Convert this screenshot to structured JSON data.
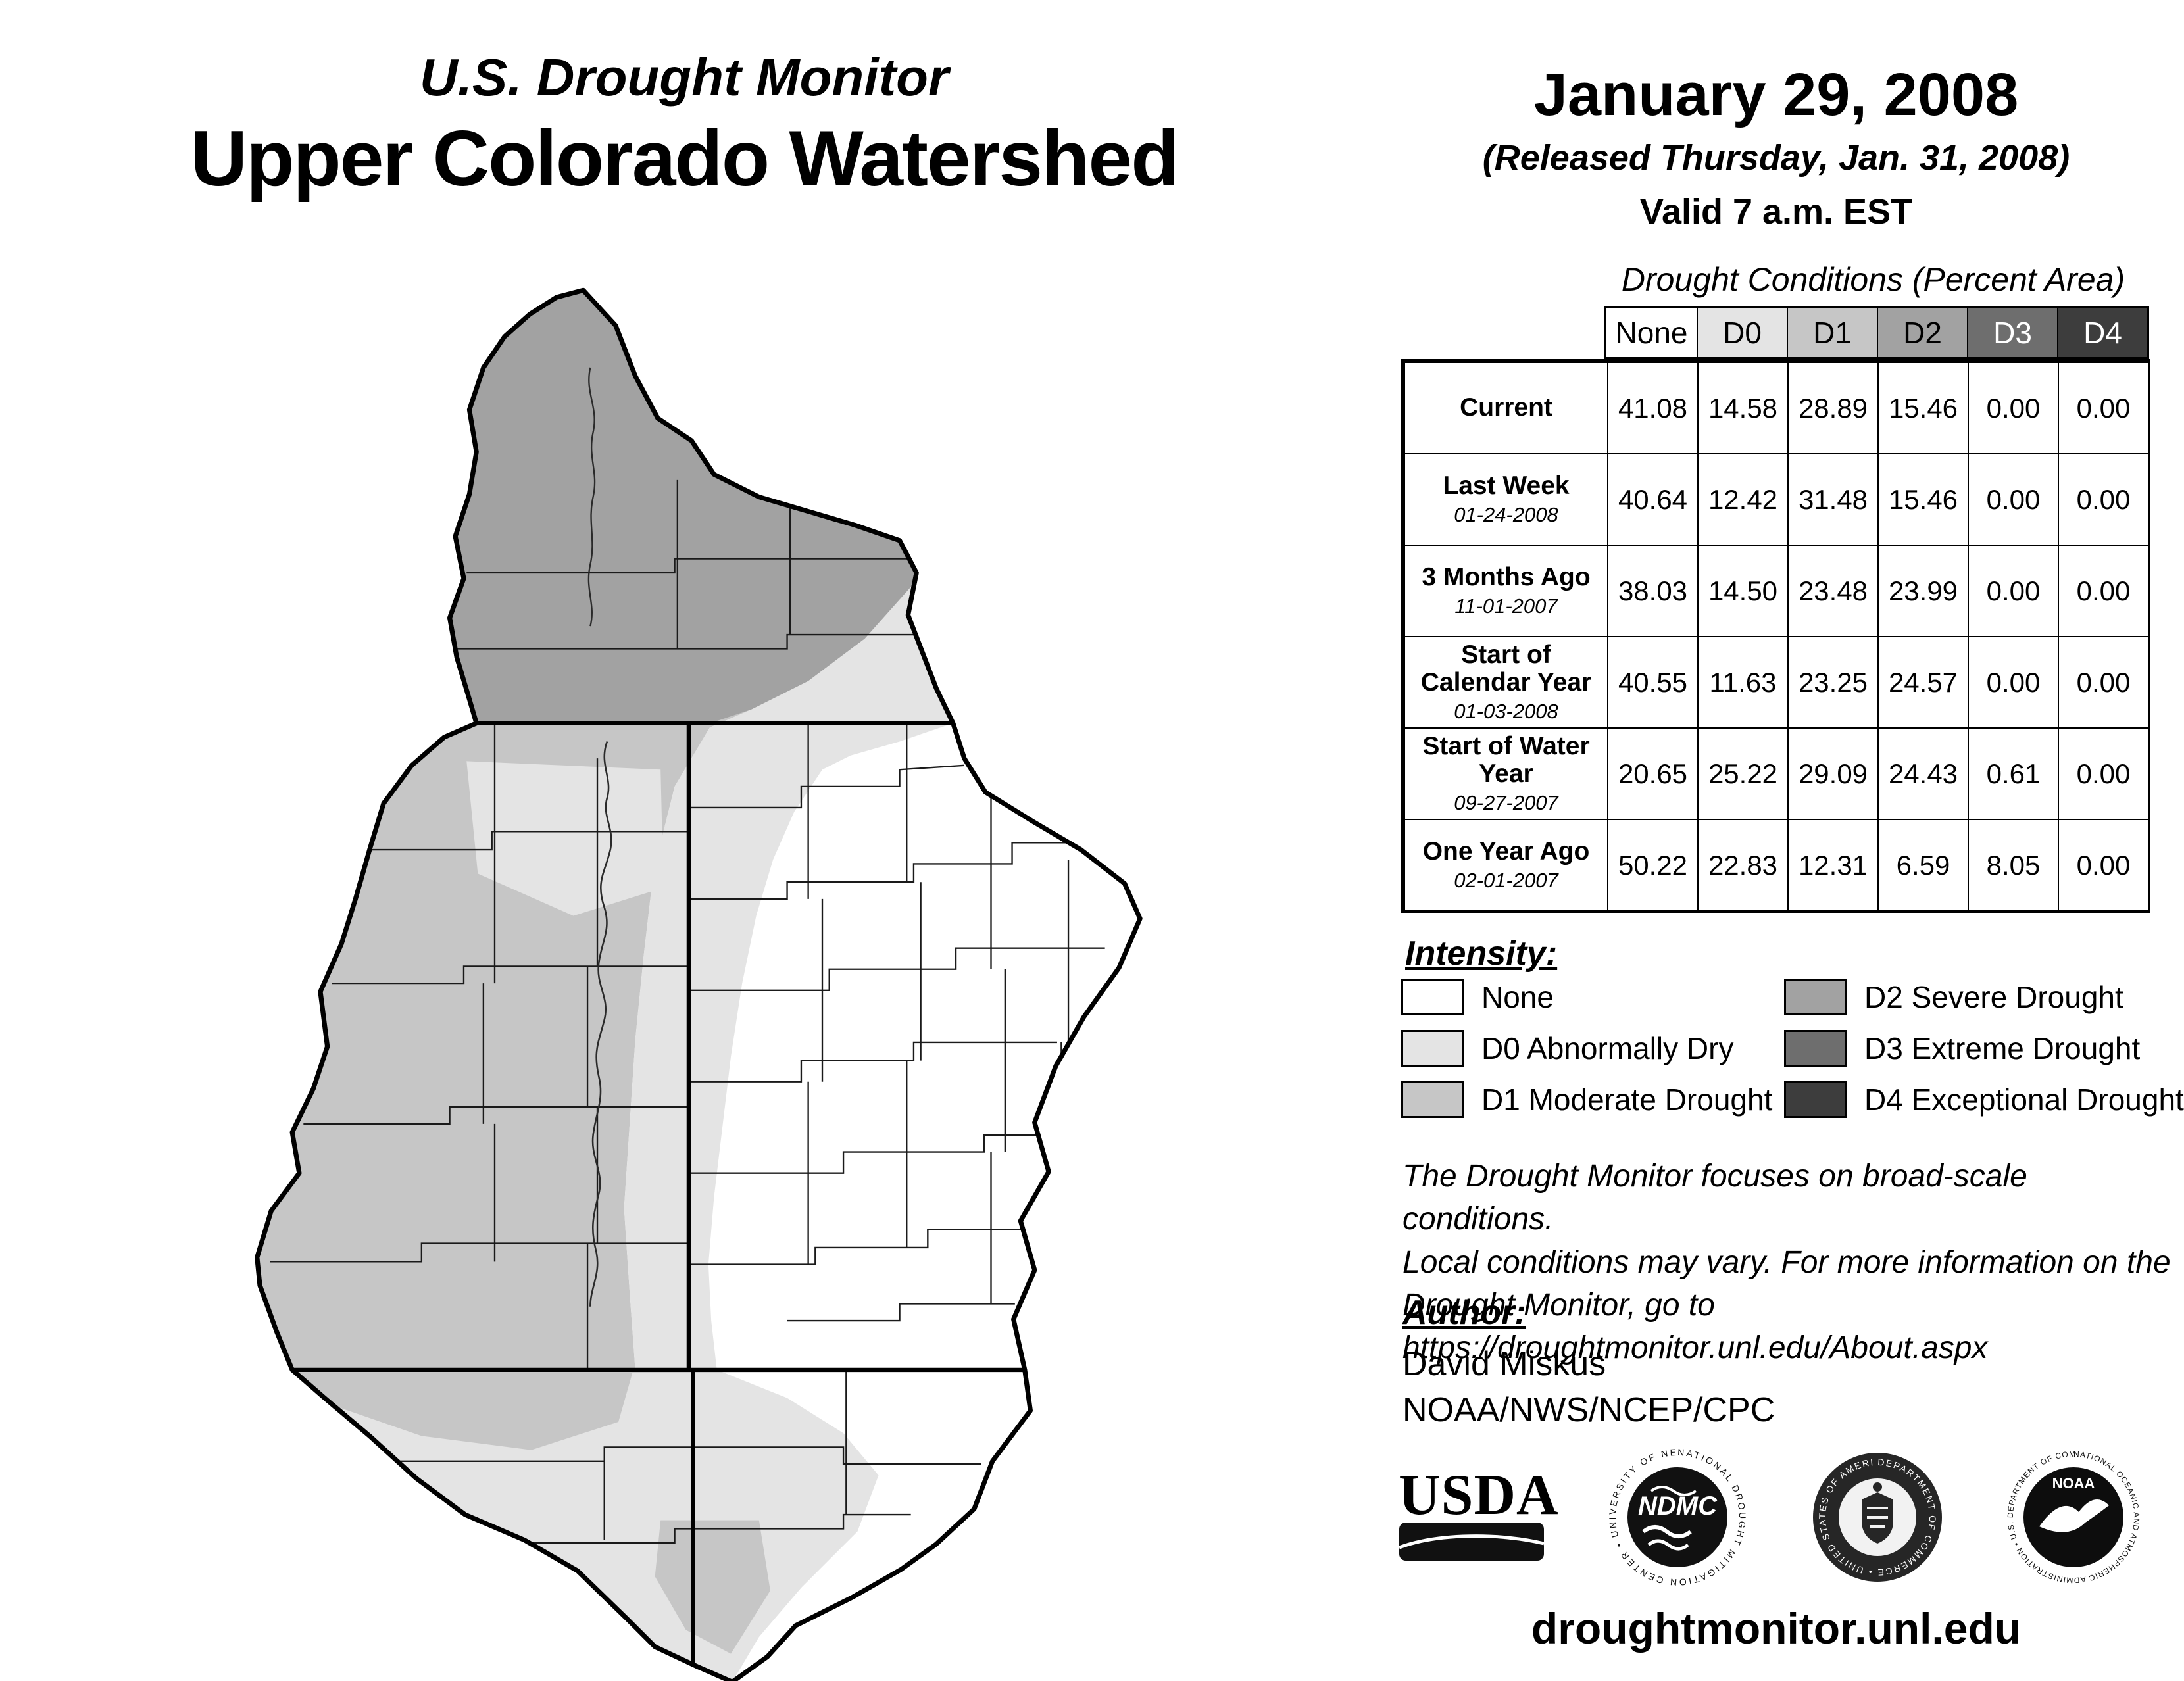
{
  "header": {
    "title_line1": "U.S. Drought Monitor",
    "title_line2": "Upper Colorado Watershed",
    "date": "January 29, 2008",
    "released": "(Released Thursday, Jan. 31, 2008)",
    "valid": "Valid 7 a.m. EST"
  },
  "table": {
    "title": "Drought Conditions (Percent Area)",
    "columns": [
      {
        "label": "None",
        "color": "#ffffff",
        "text_color": "#000000"
      },
      {
        "label": "D0",
        "color": "#e4e4e4",
        "text_color": "#000000"
      },
      {
        "label": "D1",
        "color": "#c6c6c6",
        "text_color": "#000000"
      },
      {
        "label": "D2",
        "color": "#a2a2a2",
        "text_color": "#000000"
      },
      {
        "label": "D3",
        "color": "#6e6e6e",
        "text_color": "#ffffff"
      },
      {
        "label": "D4",
        "color": "#3d3d3d",
        "text_color": "#ffffff"
      }
    ],
    "rows": [
      {
        "label": "Current",
        "sub": "",
        "values": [
          "41.08",
          "14.58",
          "28.89",
          "15.46",
          "0.00",
          "0.00"
        ]
      },
      {
        "label": "Last Week",
        "sub": "01-24-2008",
        "values": [
          "40.64",
          "12.42",
          "31.48",
          "15.46",
          "0.00",
          "0.00"
        ]
      },
      {
        "label": "3 Months Ago",
        "sub": "11-01-2007",
        "values": [
          "38.03",
          "14.50",
          "23.48",
          "23.99",
          "0.00",
          "0.00"
        ]
      },
      {
        "label": "Start of Calendar Year",
        "sub": "01-03-2008",
        "values": [
          "40.55",
          "11.63",
          "23.25",
          "24.57",
          "0.00",
          "0.00"
        ]
      },
      {
        "label": "Start of Water Year",
        "sub": "09-27-2007",
        "values": [
          "20.65",
          "25.22",
          "29.09",
          "24.43",
          "0.61",
          "0.00"
        ]
      },
      {
        "label": "One Year Ago",
        "sub": "02-01-2007",
        "values": [
          "50.22",
          "22.83",
          "12.31",
          "6.59",
          "8.05",
          "0.00"
        ]
      }
    ]
  },
  "legend": {
    "title": "Intensity:",
    "items": [
      {
        "label": "None",
        "color": "#ffffff"
      },
      {
        "label": "D0 Abnormally Dry",
        "color": "#e4e4e4"
      },
      {
        "label": "D1 Moderate Drought",
        "color": "#c6c6c6"
      },
      {
        "label": "D2 Severe Drought",
        "color": "#a2a2a2"
      },
      {
        "label": "D3 Extreme Drought",
        "color": "#6e6e6e"
      },
      {
        "label": "D4 Exceptional Drought",
        "color": "#3d3d3d"
      }
    ]
  },
  "disclaimer": [
    "The Drought Monitor focuses on broad-scale conditions.",
    "Local conditions may vary. For more information on the",
    "Drought Monitor, go to https://droughtmonitor.unl.edu/About.aspx"
  ],
  "author": {
    "heading": "Author:",
    "name": "David Miskus",
    "org": "NOAA/NWS/NCEP/CPC"
  },
  "logos": {
    "usda_text": "USDA",
    "ndmc_text": "NDMC",
    "ndmc_ring": "NATIONAL DROUGHT MITIGATION CENTER • UNIVERSITY OF NEBRASKA •",
    "doc_ring": "DEPARTMENT OF COMMERCE • UNITED STATES OF AMERICA •",
    "noaa_text": "NOAA",
    "noaa_ring": "NATIONAL OCEANIC AND ATMOSPHERIC ADMINISTRATION • U.S. DEPARTMENT OF COMMERCE •"
  },
  "footer": {
    "url": "droughtmonitor.unl.edu"
  }
}
